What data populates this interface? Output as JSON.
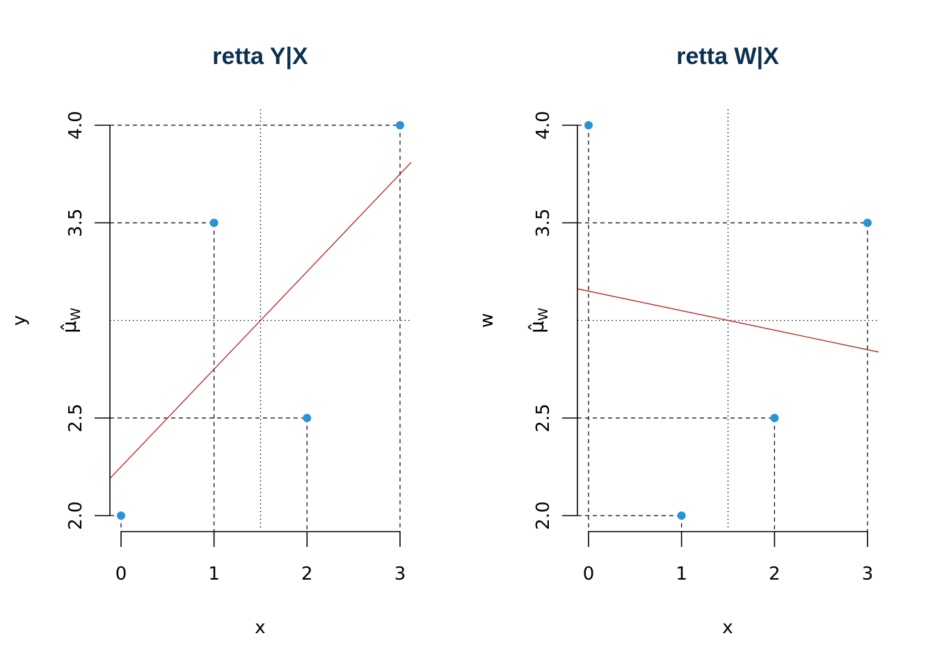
{
  "colors": {
    "point": "#2a93d5",
    "regression_line": "#b22222",
    "title": "#0b3050",
    "guides": "#000000"
  },
  "chart_data": [
    {
      "type": "scatter",
      "title": "retta Y|X",
      "xlabel": "x",
      "ylabel": "y",
      "mean_label": "μ̂",
      "mean_label_sub": "W",
      "x": [
        0,
        1,
        2,
        3
      ],
      "y": [
        2.0,
        3.5,
        2.5,
        4.0
      ],
      "x_ticks": [
        "0",
        "1",
        "2",
        "3"
      ],
      "y_ticks": [
        "2.0",
        "2.5",
        "3.5",
        "4.0"
      ],
      "mean_x": 1.5,
      "mean_y": 3.0,
      "regression": {
        "intercept": 2.25,
        "slope": 0.5
      },
      "xlim": [
        -0.12,
        3.12
      ],
      "ylim": [
        1.94,
        4.06
      ]
    },
    {
      "type": "scatter",
      "title": "retta W|X",
      "xlabel": "x",
      "ylabel": "w",
      "mean_label": "μ̂",
      "mean_label_sub": "W",
      "x": [
        0,
        1,
        2,
        3
      ],
      "y": [
        4.0,
        2.0,
        2.5,
        3.5
      ],
      "x_ticks": [
        "0",
        "1",
        "2",
        "3"
      ],
      "y_ticks": [
        "2.0",
        "2.5",
        "3.5",
        "4.0"
      ],
      "mean_x": 1.5,
      "mean_y": 3.0,
      "regression": {
        "intercept": 3.15,
        "slope": -0.1
      },
      "xlim": [
        -0.12,
        3.12
      ],
      "ylim": [
        1.94,
        4.06
      ]
    }
  ]
}
